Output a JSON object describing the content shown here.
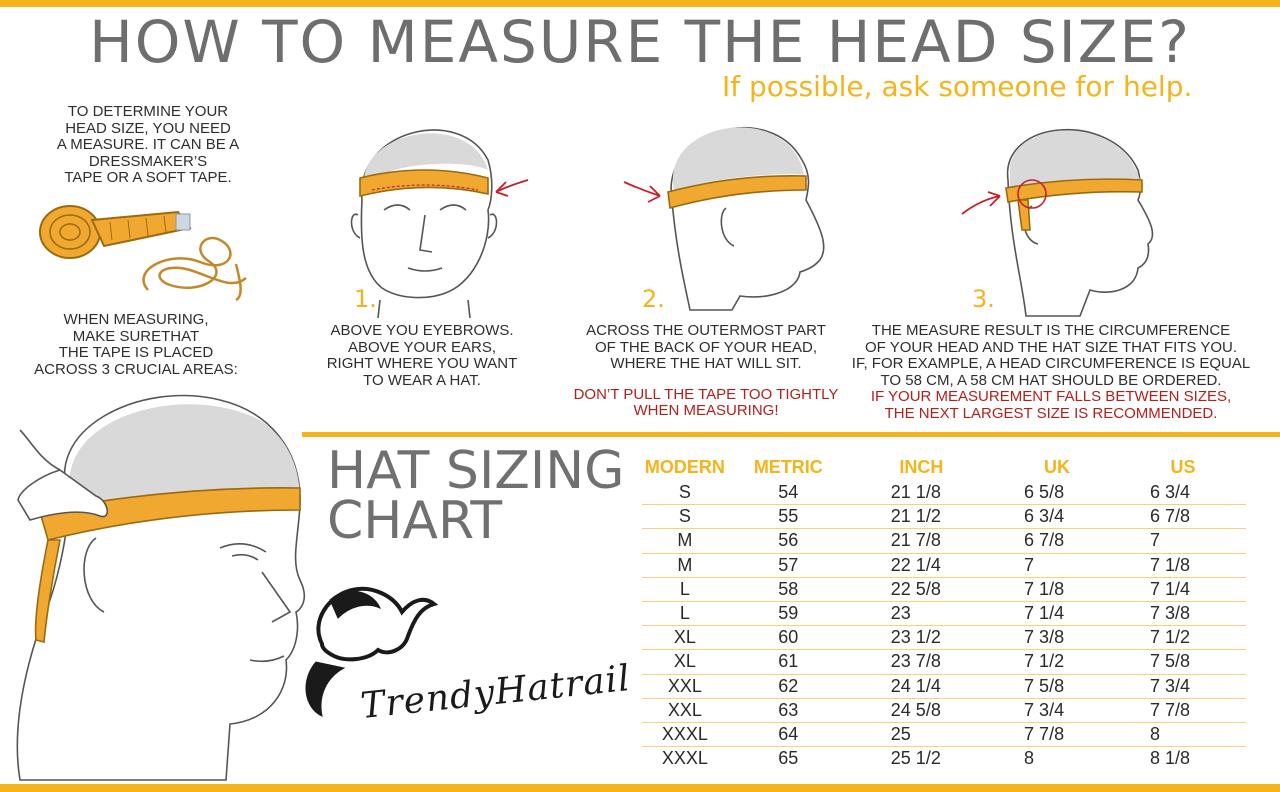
{
  "header": {
    "title": "HOW TO MEASURE THE HEAD SIZE?",
    "subtitle": "If possible, ask someone for help."
  },
  "intro": {
    "line1": "TO DETERMINE YOUR",
    "line2": "HEAD SIZE, YOU NEED",
    "line3": "A MEASURE. IT CAN BE A",
    "line4": "DRESSMAKER’S",
    "line5": "TAPE OR A SOFT TAPE."
  },
  "measuring_note": {
    "line1": "WHEN MEASURING,",
    "line2": "MAKE SURETHAT",
    "line3": "THE TAPE IS PLACED",
    "line4": "ACROSS 3 CRUCIAL AREAS:"
  },
  "steps": [
    {
      "number": "1.",
      "lines": [
        "ABOVE YOU EYEBROWS.",
        "ABOVE YOUR EARS,",
        "RIGHT WHERE YOU WANT",
        "TO WEAR A HAT."
      ]
    },
    {
      "number": "2.",
      "lines": [
        "ACROSS THE OUTERMOST PART",
        "OF THE BACK OF YOUR HEAD,",
        "WHERE THE HAT WILL SIT."
      ],
      "warning": [
        "DON’T PULL THE TAPE TOO TIGHTLY",
        "WHEN MEASURING!"
      ]
    },
    {
      "number": "3.",
      "lines": [
        "THE MEASURE RESULT IS THE CIRCUMFERENCE",
        "OF YOUR HEAD AND THE  HAT SIZE THAT FITS YOU.",
        "IF, FOR EXAMPLE, A HEAD CIRCUMFERENCE IS EQUAL",
        "TO 58 CM, A 58 CM HAT SHOULD BE ORDERED."
      ],
      "warning": [
        "IF YOUR MEASUREMENT FALLS BETWEEN SIZES,",
        "THE NEXT LARGEST SIZE IS RECOMMENDED."
      ]
    }
  ],
  "chart": {
    "title_line1": "HAT SIZING",
    "title_line2": "CHART",
    "headers": [
      "MODERN",
      "METRIC",
      "INCH",
      "UK",
      "US"
    ],
    "rows": [
      [
        "S",
        "54",
        "21 1/8",
        "6 5/8",
        "6 3/4"
      ],
      [
        "S",
        "55",
        "21 1/2",
        "6 3/4",
        "6 7/8"
      ],
      [
        "M",
        "56",
        "21 7/8",
        "6 7/8",
        "7"
      ],
      [
        "M",
        "57",
        "22 1/4",
        "7",
        "7 1/8"
      ],
      [
        "L",
        "58",
        "22 5/8",
        "7 1/8",
        "7 1/4"
      ],
      [
        "L",
        "59",
        "23",
        "7 1/4",
        "7 3/8"
      ],
      [
        "XL",
        "60",
        "23 1/2",
        "7 3/8",
        "7 1/2"
      ],
      [
        "XL",
        "61",
        "23 7/8",
        "7 1/2",
        "7 5/8"
      ],
      [
        "XXL",
        "62",
        "24 1/4",
        "7 5/8",
        "7 3/4"
      ],
      [
        "XXL",
        "63",
        "24 5/8",
        "7 3/4",
        "7 7/8"
      ],
      [
        "XXXL",
        "64",
        "25",
        "7 7/8",
        "8"
      ],
      [
        "XXXL",
        "65",
        "25 1/2",
        "8",
        "8 1/8"
      ]
    ]
  },
  "brand": {
    "name": "TrendyHatrail",
    "icon": "cowboy-hat-logo-icon"
  },
  "colors": {
    "accent": "#f4b41a",
    "tape": "#f0a830",
    "warning": "#b2201c",
    "title_gray": "#6e6e6e"
  }
}
